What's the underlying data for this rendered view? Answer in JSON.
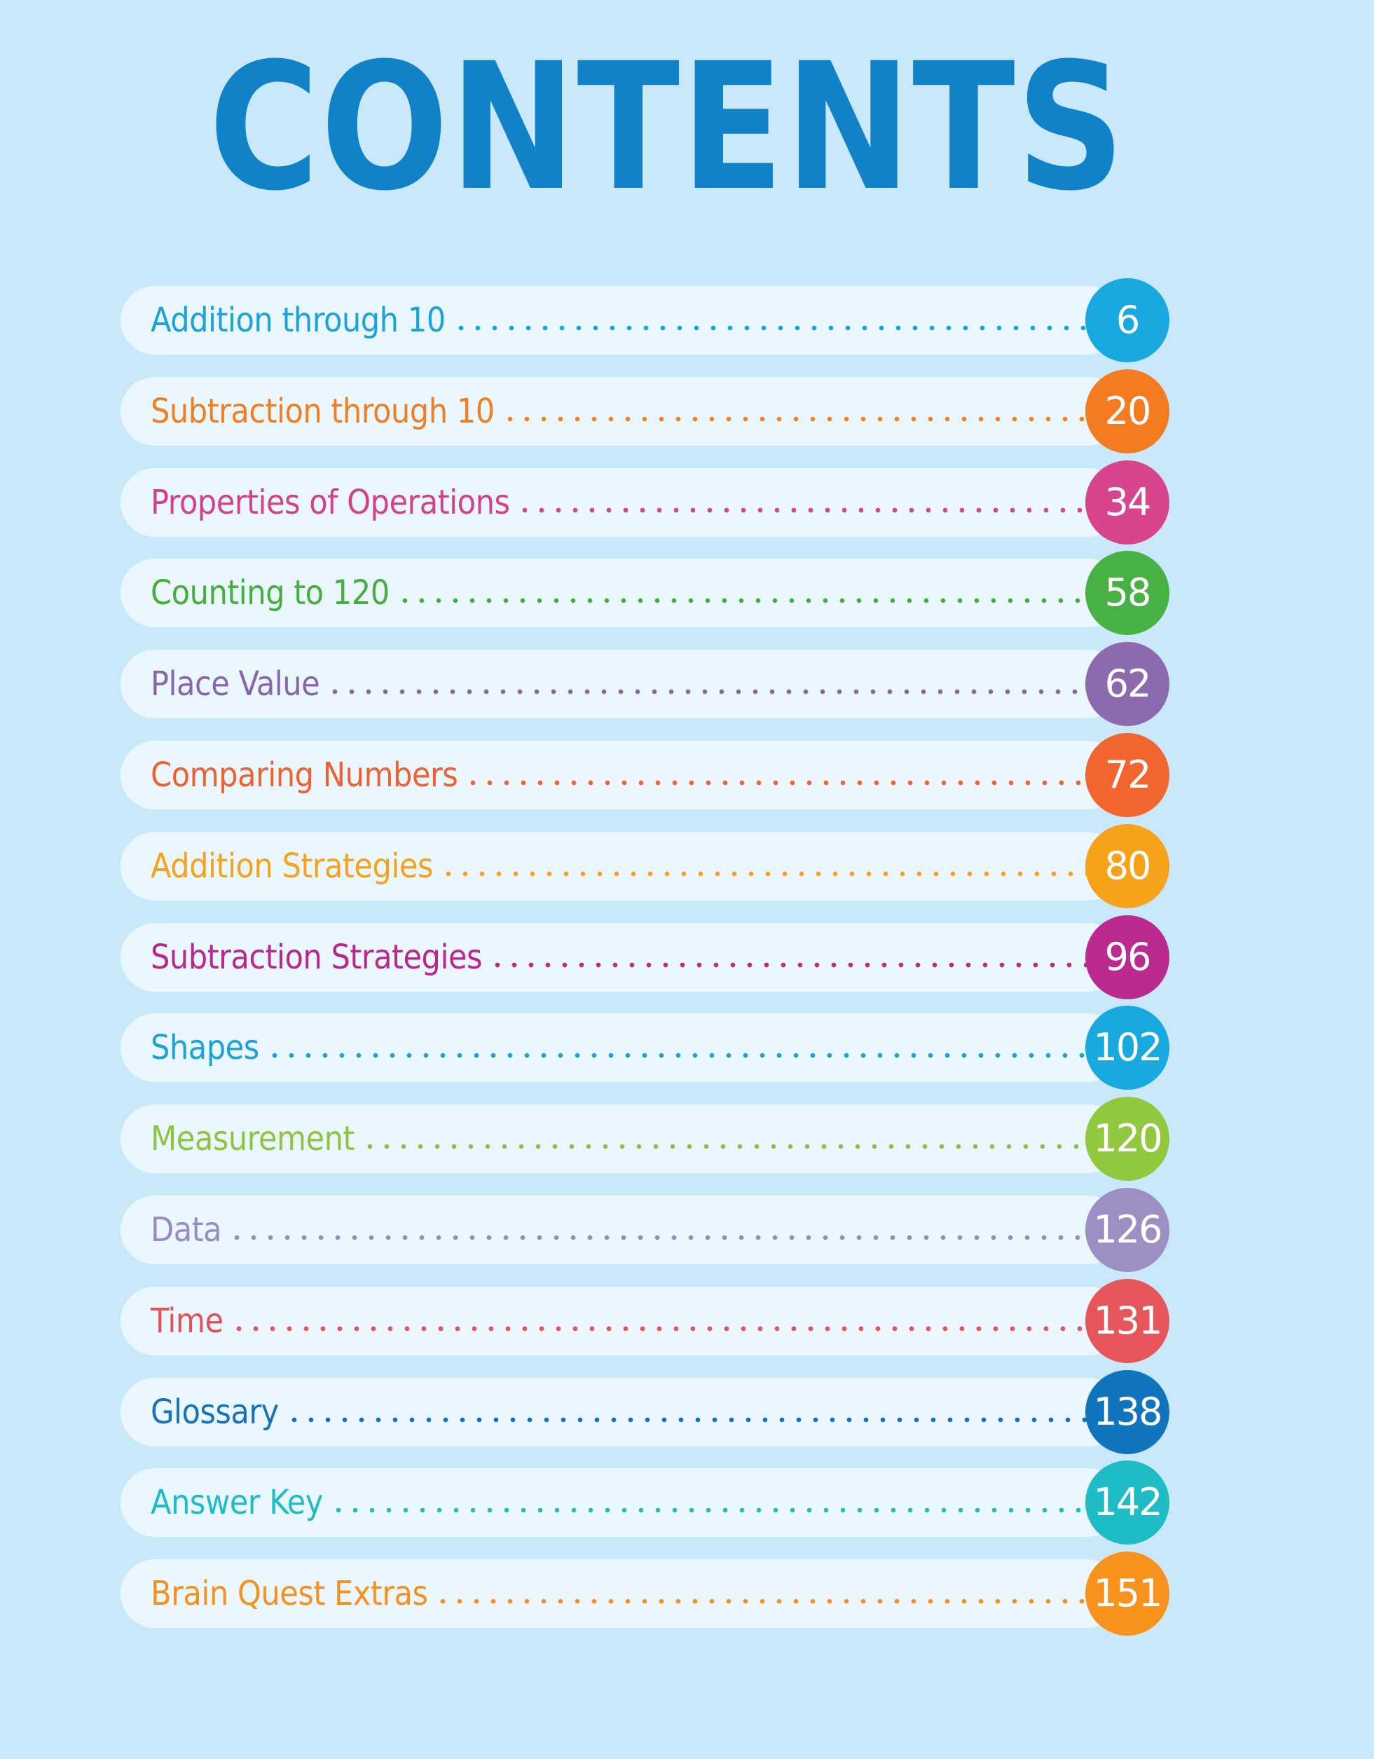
{
  "title": "CONTENTS",
  "entries": [
    {
      "label": "Addition through 10",
      "page": "6",
      "color": "#1aa3d9",
      "badge_color": "#19a9e1"
    },
    {
      "label": "Subtraction through 10",
      "page": "20",
      "color": "#f07f22",
      "badge_color": "#f47c20"
    },
    {
      "label": "Properties of Operations",
      "page": "34",
      "color": "#d3418a",
      "badge_color": "#d8458d"
    },
    {
      "label": "Counting to 120",
      "page": "58",
      "color": "#45ae3c",
      "badge_color": "#48b143"
    },
    {
      "label": "Place Value",
      "page": "62",
      "color": "#8866aa",
      "badge_color": "#8b6aad"
    },
    {
      "label": "Comparing Numbers",
      "page": "72",
      "color": "#ee6131",
      "badge_color": "#f2652f"
    },
    {
      "label": "Addition Strategies",
      "page": "80",
      "color": "#f5a21e",
      "badge_color": "#f7a21b"
    },
    {
      "label": "Subtraction Strategies",
      "page": "96",
      "color": "#b9268e",
      "badge_color": "#bb2a8f"
    },
    {
      "label": "Shapes",
      "page": "102",
      "color": "#1aa3d9",
      "badge_color": "#19a9e1"
    },
    {
      "label": "Measurement",
      "page": "120",
      "color": "#8dc541",
      "badge_color": "#92c83e"
    },
    {
      "label": "Data",
      "page": "126",
      "color": "#9a8ac2",
      "badge_color": "#9d8ec4"
    },
    {
      "label": "Time",
      "page": "131",
      "color": "#e35157",
      "badge_color": "#e5555a"
    },
    {
      "label": "Glossary",
      "page": "138",
      "color": "#1473ba",
      "badge_color": "#1175bd"
    },
    {
      "label": "Answer Key",
      "page": "142",
      "color": "#1ebcc4",
      "badge_color": "#1ebdc6"
    },
    {
      "label": "Brain Quest Extras",
      "page": "151",
      "color": "#f5921e",
      "badge_color": "#f7931d"
    }
  ]
}
